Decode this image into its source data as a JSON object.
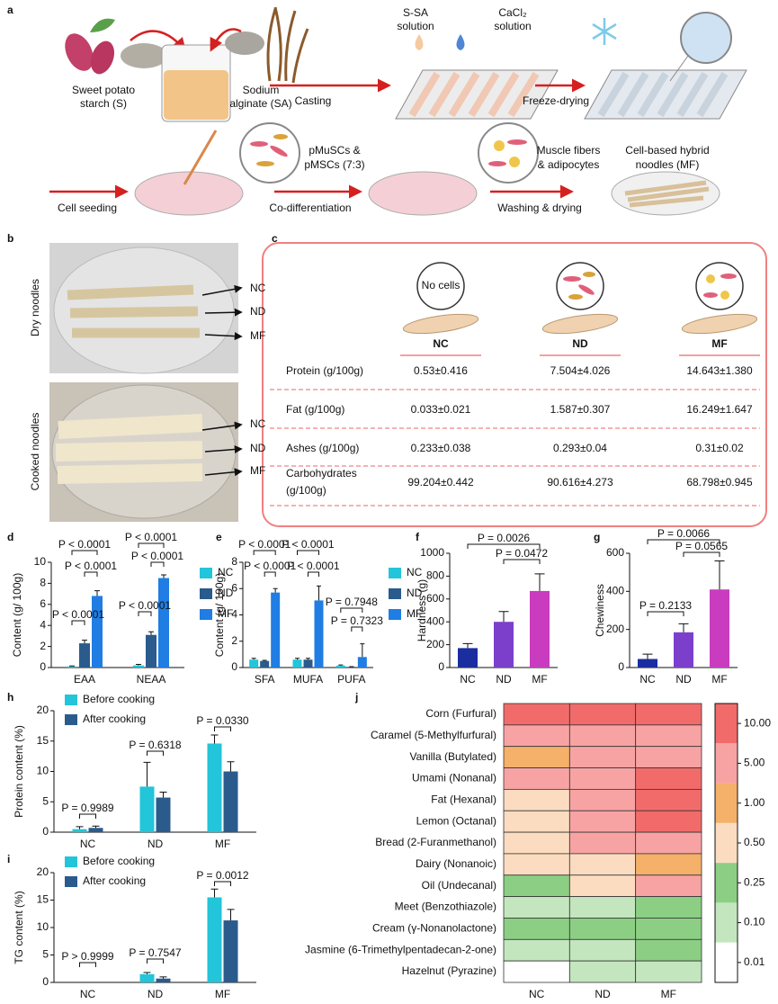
{
  "panels": [
    "a",
    "b",
    "c",
    "d",
    "e",
    "f",
    "g",
    "h",
    "i",
    "j"
  ],
  "a": {
    "starch": [
      "Sweet potato",
      "starch (S)"
    ],
    "alginate": [
      "Sodium",
      "alginate (SA)"
    ],
    "ssa": [
      "S-SA",
      "solution"
    ],
    "cacl2": [
      "CaCl₂",
      "solution"
    ],
    "casting": "Casting",
    "freeze": "Freeze-drying",
    "cells": [
      "pMuSCs &",
      "pMSCs (7:3)"
    ],
    "seeding": "Cell seeding",
    "codiff": "Co-differentiation",
    "fibers": [
      "Muscle fibers",
      "& adipocytes"
    ],
    "washing": "Washing & drying",
    "noodles": [
      "Cell-based hybrid",
      "noodles (MF)"
    ]
  },
  "b": {
    "dry": "Dry noodles",
    "cooked": "Cooked noodles",
    "dry_labels": [
      "NC",
      "ND",
      "MF"
    ],
    "cooked_labels": [
      "NC",
      "ND",
      "MF"
    ]
  },
  "c": {
    "no_cells": "No cells",
    "columns": [
      "NC",
      "ND",
      "MF"
    ],
    "rows": [
      [
        "Protein (g/100g)",
        "0.53±0.416",
        "7.504±4.026",
        "14.643±1.380"
      ],
      [
        "Fat (g/100g)",
        "0.033±0.021",
        "1.587±0.307",
        "16.249±1.647"
      ],
      [
        "Ashes (g/100g)",
        "0.233±0.038",
        "0.293±0.04",
        "0.31±0.02"
      ],
      [
        [
          "Carbohydrates",
          "(g/100g)"
        ],
        "99.204±0.442",
        "90.616±4.273",
        "68.798±0.945"
      ]
    ]
  },
  "chart_data": [
    {
      "type": "bar",
      "ylabel": "Content (g/ 100g)",
      "categories": [
        "EAA",
        "NEAA"
      ],
      "series": [
        {
          "name": "NC",
          "color": "#22c5d9",
          "values": [
            0.1,
            0.2
          ],
          "errors": [
            0.05,
            0.1
          ]
        },
        {
          "name": "ND",
          "color": "#2a5b8c",
          "values": [
            2.3,
            3.1
          ],
          "errors": [
            0.3,
            0.3
          ]
        },
        {
          "name": "MF",
          "color": "#1f7de3",
          "values": [
            6.8,
            8.5
          ],
          "errors": [
            0.5,
            0.3
          ]
        }
      ],
      "ylim": [
        0,
        10
      ],
      "yticks": [
        0,
        2,
        4,
        6,
        8,
        10
      ],
      "legend": "right",
      "annotations": [
        "P < 0.0001",
        "P < 0.0001",
        "P < 0.0001",
        "P < 0.0001",
        "P < 0.0001",
        "P < 0.0001"
      ]
    },
    {
      "type": "bar",
      "ylabel": "Content (g/ 100g)",
      "categories": [
        "SFA",
        "MUFA",
        "PUFA"
      ],
      "series": [
        {
          "name": "NC",
          "color": "#22c5d9",
          "values": [
            0.6,
            0.6,
            0.15
          ],
          "errors": [
            0.1,
            0.1,
            0.05
          ]
        },
        {
          "name": "ND",
          "color": "#2a5b8c",
          "values": [
            0.5,
            0.6,
            0.05
          ],
          "errors": [
            0.05,
            0.1,
            0.02
          ]
        },
        {
          "name": "MF",
          "color": "#1f7de3",
          "values": [
            5.7,
            5.1,
            0.8
          ],
          "errors": [
            0.3,
            1.1,
            1.0
          ]
        }
      ],
      "ylim": [
        0,
        8
      ],
      "yticks": [
        0,
        2,
        4,
        6,
        8
      ],
      "legend": "right",
      "annotations": [
        "P < 0.0001",
        "P < 0.0001",
        "P < 0.0001",
        "P < 0.0001",
        "P = 0.7948",
        "P = 0.7323"
      ]
    },
    {
      "type": "bar",
      "ylabel": "Hardness (g)",
      "categories": [
        "NC",
        "ND",
        "MF"
      ],
      "values": [
        170,
        400,
        670
      ],
      "errors": [
        40,
        90,
        150
      ],
      "colors": [
        "#1a2ea0",
        "#7b3fcc",
        "#c93cbf"
      ],
      "ylim": [
        0,
        1000
      ],
      "yticks": [
        0,
        200,
        400,
        600,
        800,
        1000
      ],
      "annotations": [
        "P = 0.0026",
        "P = 0.0472"
      ]
    },
    {
      "type": "bar",
      "ylabel": "Chewiness",
      "categories": [
        "NC",
        "ND",
        "MF"
      ],
      "values": [
        45,
        185,
        410
      ],
      "errors": [
        25,
        45,
        150
      ],
      "colors": [
        "#1a2ea0",
        "#7b3fcc",
        "#c93cbf"
      ],
      "ylim": [
        0,
        600
      ],
      "yticks": [
        0,
        200,
        400,
        600
      ],
      "annotations": [
        "P = 0.0066",
        "P = 0.0565",
        "P = 0.2133"
      ]
    },
    {
      "type": "bar",
      "ylabel": "Protein content (%)",
      "categories": [
        "NC",
        "ND",
        "MF"
      ],
      "series": [
        {
          "name": "Before cooking",
          "color": "#22c5d9",
          "values": [
            0.5,
            7.5,
            14.6
          ],
          "errors": [
            0.4,
            4.0,
            1.4
          ]
        },
        {
          "name": "After cooking",
          "color": "#2a5b8c",
          "values": [
            0.7,
            5.7,
            10.0
          ],
          "errors": [
            0.3,
            0.9,
            1.6
          ]
        }
      ],
      "ylim": [
        0,
        20
      ],
      "yticks": [
        0,
        5,
        10,
        15,
        20
      ],
      "legend": "upper left",
      "annotations": [
        "P = 0.9989",
        "P = 0.6318",
        "P = 0.0330"
      ]
    },
    {
      "type": "bar",
      "ylabel": "TG content (%)",
      "categories": [
        "NC",
        "ND",
        "MF"
      ],
      "series": [
        {
          "name": "Before cooking",
          "color": "#22c5d9",
          "values": [
            0,
            1.5,
            15.5
          ],
          "errors": [
            0,
            0.3,
            1.5
          ]
        },
        {
          "name": "After cooking",
          "color": "#2a5b8c",
          "values": [
            0,
            0.7,
            11.3
          ],
          "errors": [
            0,
            0.3,
            2.0
          ]
        }
      ],
      "ylim": [
        0,
        20
      ],
      "yticks": [
        0,
        5,
        10,
        15,
        20
      ],
      "legend": "upper left",
      "annotations": [
        "P > 0.9999",
        "P = 0.7547",
        "P = 0.0012"
      ]
    },
    {
      "type": "heatmap",
      "rows": [
        "Corn (Furfural)",
        "Caramel (5-Methylfurfural)",
        "Vanilla (Butylated)",
        "Umami (Nonanal)",
        "Fat (Hexanal)",
        "Lemon (Octanal)",
        "Bread (2-Furanmethanol)",
        "Dairy (Nonanoic)",
        "Oil (Undecanal)",
        "Meet (Benzothiazole)",
        "Cream (γ-Nonanolactone)",
        "Jasmine (6-Trimethylpentadecan-2-one)",
        "Hazelnut (Pyrazine)"
      ],
      "columns": [
        "NC",
        "ND",
        "MF"
      ],
      "values": [
        [
          12,
          12,
          12
        ],
        [
          6,
          6,
          6
        ],
        [
          2,
          6,
          6
        ],
        [
          6,
          6,
          12
        ],
        [
          0.7,
          6,
          12
        ],
        [
          0.7,
          6,
          12
        ],
        [
          0.7,
          8,
          6
        ],
        [
          0.7,
          0.7,
          2
        ],
        [
          0.3,
          0.7,
          8
        ],
        [
          0.15,
          0.15,
          0.3
        ],
        [
          0.3,
          0.3,
          0.3
        ],
        [
          0.15,
          0.15,
          0.3
        ],
        [
          0.05,
          0.15,
          0.15
        ]
      ],
      "colorbar": {
        "ticks": [
          {
            "value": 10,
            "label": "10.00"
          },
          {
            "value": 5,
            "label": "5.00"
          },
          {
            "value": 1,
            "label": "1.00"
          },
          {
            "value": 0.5,
            "label": "0.50"
          },
          {
            "value": 0.25,
            "label": "0.25"
          },
          {
            "value": 0.1,
            "label": "0.10"
          },
          {
            "value": 0.01,
            "label": "0.01"
          }
        ],
        "colors": [
          "#f26b6b",
          "#f8a3a3",
          "#f5b06a",
          "#fcdcc0",
          "#8ccf84",
          "#c4e6bf",
          "#ffffff"
        ]
      }
    }
  ]
}
